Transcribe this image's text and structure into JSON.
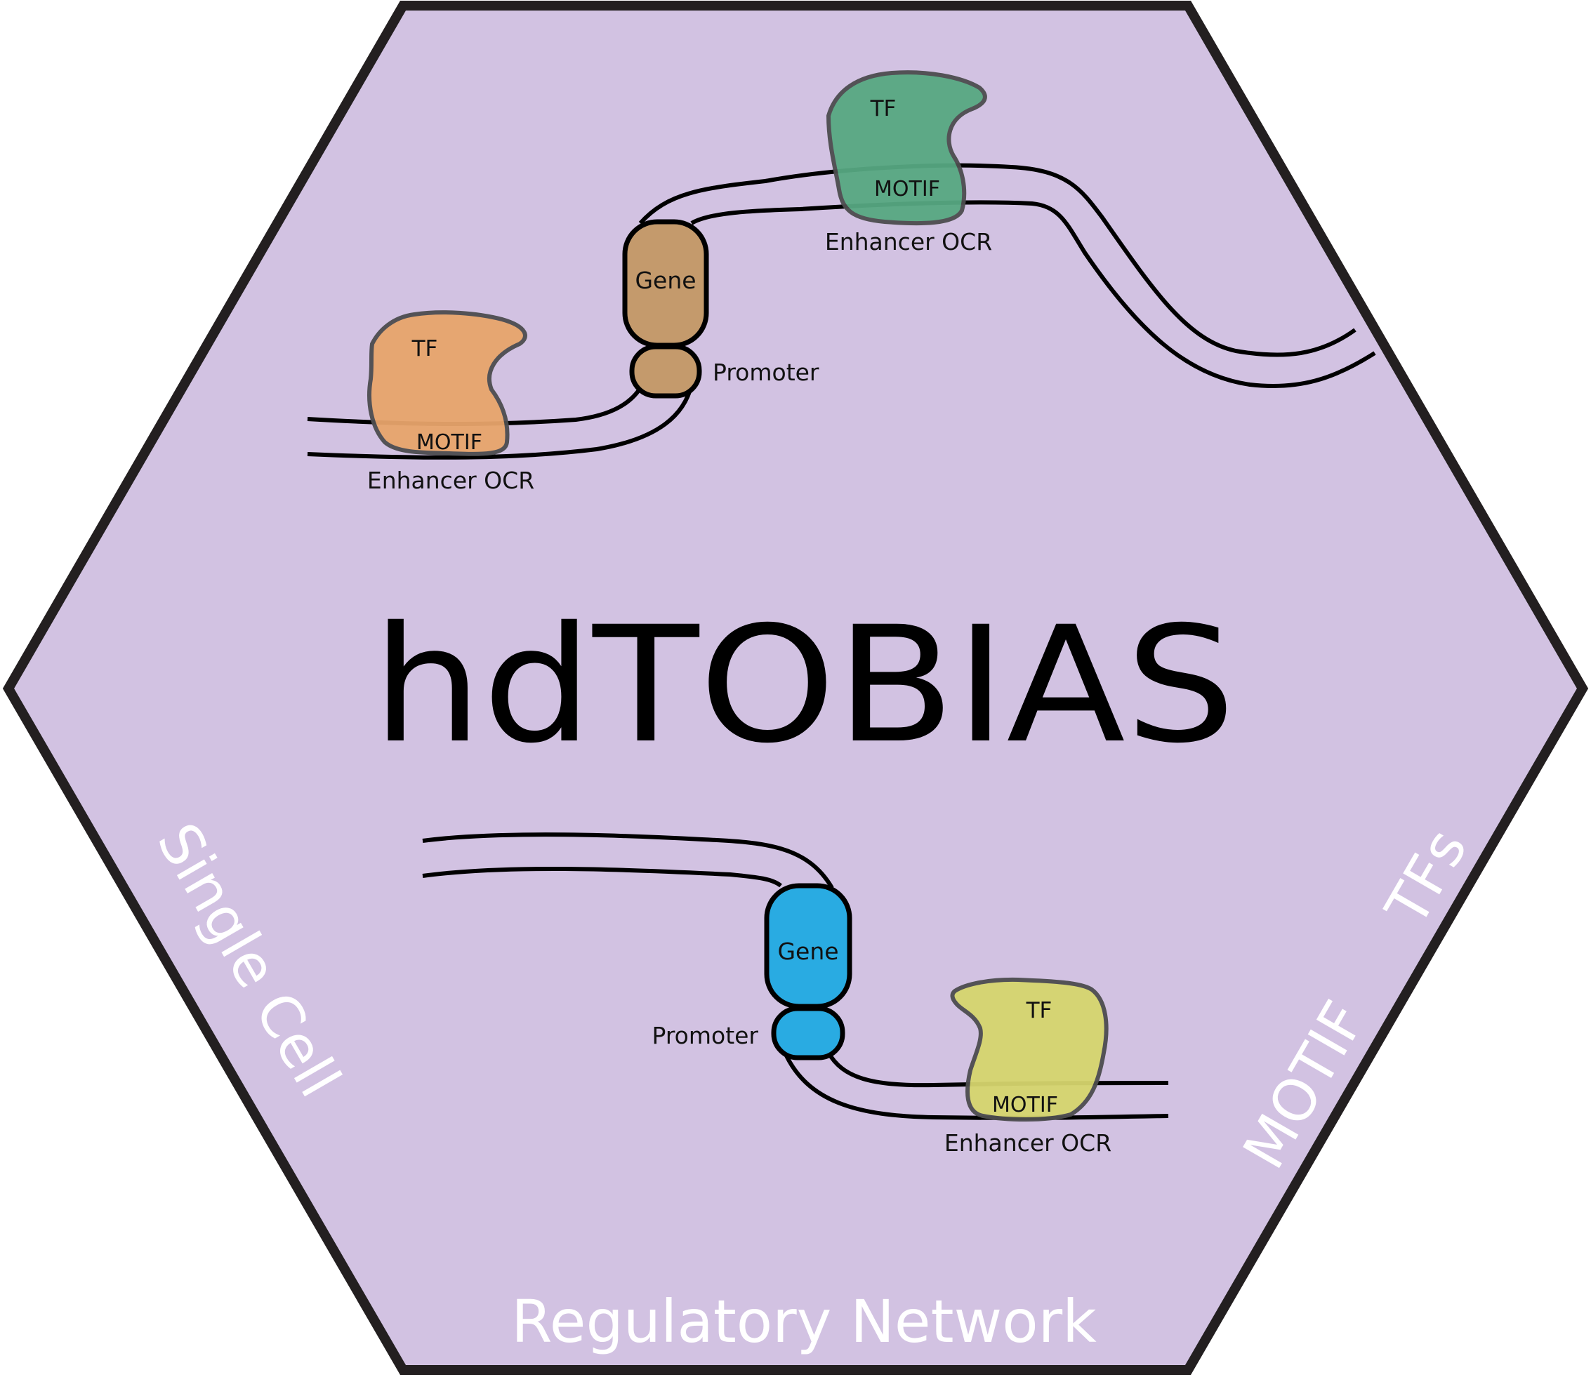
{
  "title": "hdTOBIAS",
  "edges": {
    "left": "Single Cell",
    "bottom": "Regulatory Network",
    "right_lower": "MOTIF",
    "right_upper": "TFs"
  },
  "upper_diagram": {
    "gene_label": "Gene",
    "promoter_label": "Promoter",
    "left_tf": {
      "tf_label": "TF",
      "motif_label": "MOTIF",
      "ocr_label": "Enhancer OCR"
    },
    "right_tf": {
      "tf_label": "TF",
      "motif_label": "MOTIF",
      "ocr_label": "Enhancer OCR"
    }
  },
  "lower_diagram": {
    "gene_label": "Gene",
    "promoter_label": "Promoter",
    "tf": {
      "tf_label": "TF",
      "motif_label": "MOTIF",
      "ocr_label": "Enhancer OCR"
    }
  },
  "colors": {
    "background": "#d2c2e2",
    "border": "#231f20",
    "tf_orange": "#e8a56c",
    "tf_green": "#57a882",
    "tf_yellow": "#d6d56e",
    "gene_brown": "#c49a6c",
    "gene_blue": "#29abe2"
  }
}
